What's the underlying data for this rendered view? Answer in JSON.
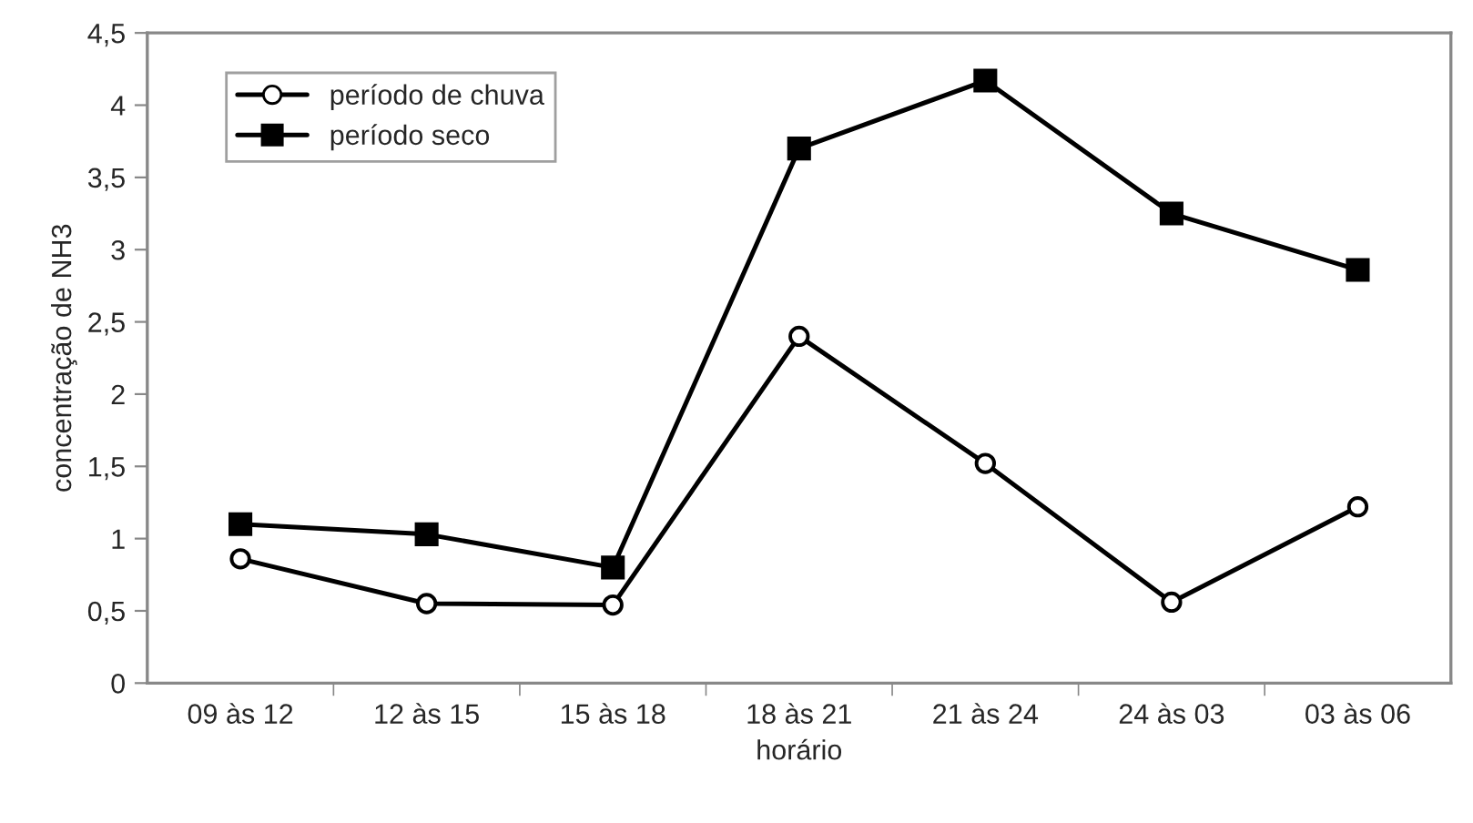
{
  "chart_data": {
    "type": "line",
    "xlabel": "horário",
    "ylabel": "concentração de NH3",
    "categories": [
      "09 às 12",
      "12 às 15",
      "15 às 18",
      "18 às 21",
      "21 às 24",
      "24 às 03",
      "03 às 06"
    ],
    "series": [
      {
        "name": "período de chuva",
        "color": "#000000",
        "marker": "circle",
        "values": [
          0.86,
          0.55,
          0.54,
          2.4,
          1.52,
          0.56,
          1.22
        ]
      },
      {
        "name": "período seco",
        "color": "#000000",
        "marker": "square",
        "values": [
          1.1,
          1.03,
          0.8,
          3.7,
          4.17,
          3.25,
          2.86
        ]
      }
    ],
    "ylim": [
      0,
      4.5
    ],
    "yticks": [
      0,
      {
        "value": 0.5,
        "label": "0,5"
      },
      1,
      {
        "value": 1.5,
        "label": "1,5"
      },
      2,
      {
        "value": 2.5,
        "label": "2,5"
      },
      3,
      {
        "value": 3.5,
        "label": "3,5"
      },
      4,
      {
        "value": 4.5,
        "label": "4,5"
      }
    ],
    "grid": false,
    "legend": "top left",
    "line_style": "solid"
  }
}
